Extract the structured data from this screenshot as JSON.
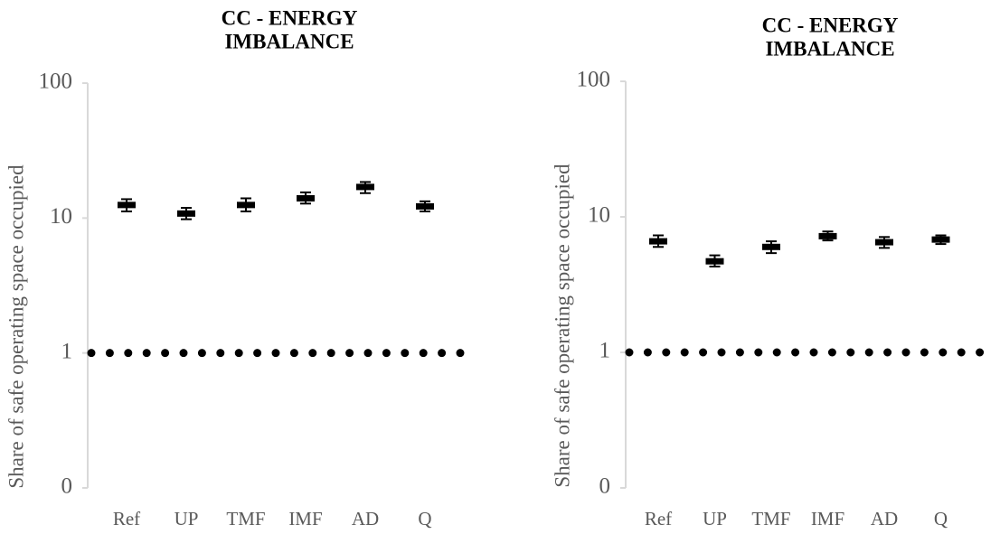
{
  "chart_data": [
    {
      "type": "errorbar",
      "title": [
        "CC - ENERGY",
        "IMBALANCE"
      ],
      "y_label": "Share of safe operating space occupied",
      "categories": [
        "Ref",
        "UP",
        "TMF",
        "IMF",
        "AD",
        "Q"
      ],
      "values": [
        12.5,
        10.8,
        12.5,
        14,
        17,
        12.2
      ],
      "low": [
        11.2,
        9.8,
        11.2,
        12.8,
        15.3,
        11.2
      ],
      "high": [
        13.8,
        11.9,
        14,
        15.5,
        18.5,
        13.3
      ],
      "color": "#000000",
      "log_y": true,
      "ylim": [
        0.1,
        100
      ],
      "yticks": [
        {
          "value": 0.1,
          "label": "0"
        },
        1,
        10,
        100
      ],
      "reference_line": 1
    },
    {
      "type": "errorbar",
      "title": [
        "CC - ENERGY",
        "IMBALANCE"
      ],
      "y_label": "Share of safe operating space occupied",
      "categories": [
        "Ref",
        "UP",
        "TMF",
        "IMF",
        "AD",
        "Q"
      ],
      "values": [
        6.6,
        4.7,
        6.0,
        7.2,
        6.5,
        6.8
      ],
      "low": [
        6.0,
        4.3,
        5.4,
        6.7,
        5.9,
        6.3
      ],
      "high": [
        7.3,
        5.2,
        6.6,
        7.8,
        7.1,
        7.3
      ],
      "color": "#000000",
      "log_y": true,
      "ylim": [
        0.1,
        100
      ],
      "yticks": [
        {
          "value": 0.1,
          "label": "0"
        },
        1,
        10,
        100
      ],
      "reference_line": 1
    }
  ]
}
